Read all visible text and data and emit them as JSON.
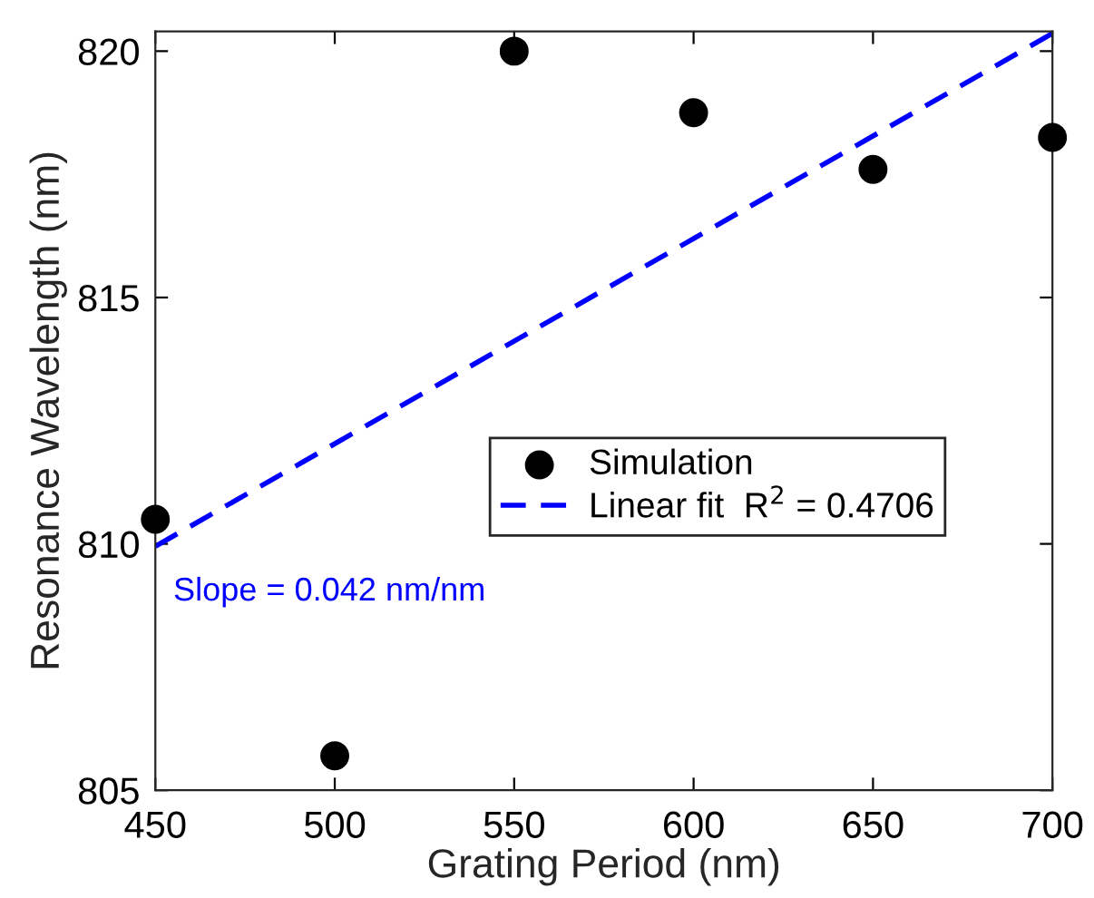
{
  "chart_data": {
    "type": "scatter",
    "xlabel": "Grating Period (nm)",
    "ylabel": "Resonance Wavelength (nm)",
    "x": [
      450,
      500,
      550,
      600,
      650,
      700
    ],
    "series": [
      {
        "name": "Simulation",
        "color": "#000000",
        "marker": "circle",
        "values": [
          810.5,
          805.7,
          820.0,
          818.75,
          817.6,
          818.25
        ]
      },
      {
        "name": "Linear fit  R$^{2}$ = 0.4706",
        "type": "line",
        "color": "#0000ff",
        "line_style": "dashed",
        "marker": "none",
        "x": [
          450,
          700
        ],
        "values": [
          809.95,
          820.36
        ]
      }
    ],
    "annotations": [
      "Slope = 0.042 nm/nm"
    ],
    "xlim": [
      450,
      700
    ],
    "ylim": [
      805,
      820.4
    ],
    "xticks": [
      450,
      500,
      550,
      600,
      650,
      700
    ],
    "yticks": [
      805,
      810,
      815,
      820
    ],
    "grid": false,
    "legend": "center right"
  }
}
